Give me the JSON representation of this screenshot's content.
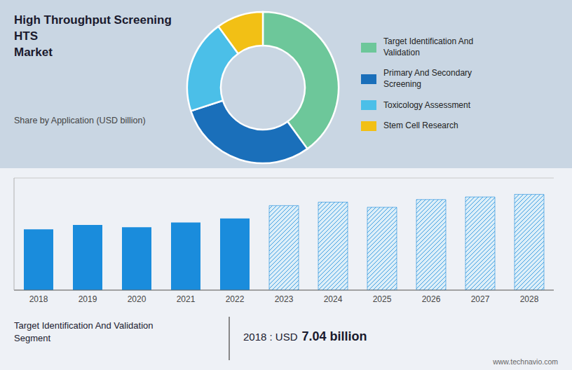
{
  "chart_data": [
    {
      "type": "pie",
      "title": "High Throughput Screening HTS\nMarket",
      "subtitle": "Share by Application (USD billion)",
      "categories": [
        "Target Identification And\nValidation",
        "Primary And Secondary\nScreening",
        "Toxicology Assessment",
        "Stem Cell Research"
      ],
      "values": [
        0.4,
        0.3,
        0.2,
        0.1
      ],
      "colors": [
        "#6dc79a",
        "#1a6fba",
        "#4bbfe8",
        "#f2c015"
      ],
      "legend": "right"
    },
    {
      "type": "bar",
      "categories": [
        2018,
        2019,
        2020,
        2021,
        2022,
        2023,
        2024,
        2025,
        2026,
        2027,
        2028
      ],
      "series": [
        {
          "color": "#1a8cdc",
          "values": [
            7.04,
            7.55,
            7.3,
            7.85,
            8.3,
            null,
            null,
            null,
            null,
            null,
            null
          ]
        },
        {
          "color": "#1a8cdc",
          "line_style": "hatched",
          "values": [
            null,
            null,
            null,
            null,
            null,
            9.8,
            10.2,
            9.6,
            10.5,
            10.8,
            11.1
          ]
        }
      ],
      "ylim": [
        0,
        13
      ],
      "yticks": [
        0,
        2,
        4,
        6,
        8,
        10,
        12
      ],
      "grid": true,
      "tick_labels": "x",
      "annotations": [
        "Target Identification And Validation\nSegment",
        "2018 : USD",
        "7.04 billion",
        "www.technavio.com"
      ]
    }
  ]
}
